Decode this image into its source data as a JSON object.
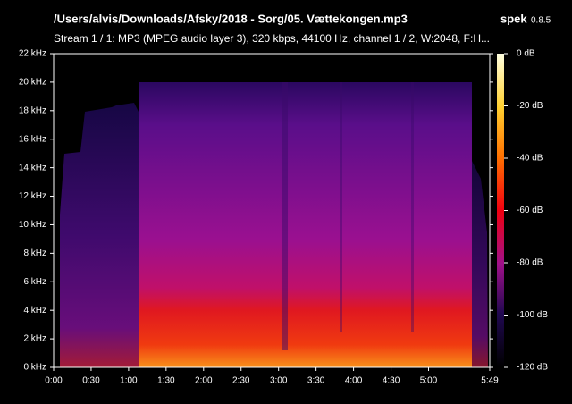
{
  "chart_data": {
    "type": "spectrogram",
    "title": "/Users/alvis/Downloads/Afsky/2018 - Sorg/05. Vættekongen.mp3",
    "app": "spek",
    "version": "0.8.5",
    "subtitle": "Stream 1 / 1: MP3 (MPEG audio layer 3), 320 kbps, 44100 Hz, channel 1 / 2, W:2048, F:H...",
    "xlim": [
      0,
      349
    ],
    "ylim": [
      0,
      22
    ],
    "xticks": [
      {
        "value": 0,
        "label": "0:00"
      },
      {
        "value": 30,
        "label": "0:30"
      },
      {
        "value": 60,
        "label": "1:00"
      },
      {
        "value": 90,
        "label": "1:30"
      },
      {
        "value": 120,
        "label": "2:00"
      },
      {
        "value": 150,
        "label": "2:30"
      },
      {
        "value": 180,
        "label": "3:00"
      },
      {
        "value": 210,
        "label": "3:30"
      },
      {
        "value": 240,
        "label": "4:00"
      },
      {
        "value": 270,
        "label": "4:30"
      },
      {
        "value": 300,
        "label": "5:00"
      },
      {
        "value": 349,
        "label": "5:49"
      }
    ],
    "yticks": [
      {
        "value": 0,
        "label": "0 kHz"
      },
      {
        "value": 2,
        "label": "2 kHz"
      },
      {
        "value": 4,
        "label": "4 kHz"
      },
      {
        "value": 6,
        "label": "6 kHz"
      },
      {
        "value": 8,
        "label": "8 kHz"
      },
      {
        "value": 10,
        "label": "10 kHz"
      },
      {
        "value": 12,
        "label": "12 kHz"
      },
      {
        "value": 14,
        "label": "14 kHz"
      },
      {
        "value": 16,
        "label": "16 kHz"
      },
      {
        "value": 18,
        "label": "18 kHz"
      },
      {
        "value": 20,
        "label": "20 kHz"
      },
      {
        "value": 22,
        "label": "22 kHz"
      }
    ],
    "colorbar_lim": [
      -120,
      0
    ],
    "colorbar_ticks": [
      {
        "value": 0,
        "label": "0 dB"
      },
      {
        "value": -20,
        "label": "-20 dB"
      },
      {
        "value": -40,
        "label": "-40 dB"
      },
      {
        "value": -60,
        "label": "-60 dB"
      },
      {
        "value": -80,
        "label": "-80 dB"
      },
      {
        "value": -100,
        "label": "-100 dB"
      },
      {
        "value": -120,
        "label": "-120 dB"
      }
    ]
  }
}
